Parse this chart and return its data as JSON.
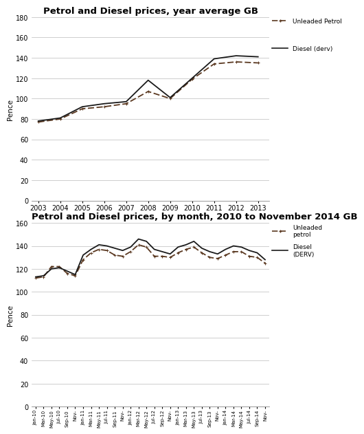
{
  "chart1_title": "Petrol and Diesel prices, year average GB",
  "chart1_ylabel": "Pence",
  "chart1_years": [
    2003,
    2004,
    2005,
    2006,
    2007,
    2008,
    2009,
    2010,
    2011,
    2012,
    2013
  ],
  "chart1_diesel": [
    78,
    81,
    92,
    95,
    97,
    118,
    101,
    120,
    139,
    142,
    141
  ],
  "chart1_petrol": [
    77,
    80,
    90,
    92,
    95,
    107,
    100,
    119,
    134,
    136,
    135
  ],
  "chart1_ylim": [
    0,
    180
  ],
  "chart1_yticks": [
    0,
    20,
    40,
    60,
    80,
    100,
    120,
    140,
    160,
    180
  ],
  "chart2_title": "Petrol and Diesel prices, by month, 2010 to November 2014 GB",
  "chart2_ylabel": "Pence",
  "chart2_ylim": [
    0,
    160
  ],
  "chart2_yticks": [
    0,
    20,
    40,
    60,
    80,
    100,
    120,
    140,
    160
  ],
  "chart2_xtick_labels": [
    "Jan-10",
    "Mar-10",
    "May-10",
    "Jul-10",
    "Sep-10",
    "Nov-",
    "Jan-11",
    "Mar-11",
    "May-11",
    "Jul-11",
    "Sep-11",
    "Nov-",
    "Jan-12",
    "Mar-12",
    "May-12",
    "Jul-12",
    "Sep-12",
    "Nov-",
    "Jan-13",
    "Mar-13",
    "May-13",
    "Jul-13",
    "Sep-13",
    "Nov-",
    "Jan-14",
    "Mar-14",
    "May-14",
    "Jul-14",
    "Sep-14",
    "Nov-"
  ],
  "chart2_diesel": [
    113,
    114,
    120,
    121,
    118,
    115,
    132,
    137,
    141,
    140,
    138,
    136,
    139,
    146,
    144,
    137,
    135,
    133,
    139,
    141,
    144,
    138,
    135,
    133,
    137,
    140,
    139,
    136,
    134,
    128
  ],
  "chart2_petrol": [
    112,
    113,
    122,
    122,
    116,
    114,
    128,
    134,
    137,
    136,
    132,
    131,
    135,
    141,
    139,
    131,
    131,
    130,
    134,
    137,
    139,
    134,
    130,
    129,
    132,
    135,
    135,
    131,
    130,
    125
  ],
  "diesel_color": "#1a1a1a",
  "petrol_color": "#5a3820",
  "line_width": 1.3,
  "grid_color": "#bbbbbb",
  "bg_color": "#ffffff",
  "title_fontsize": 9.5,
  "label_fontsize": 7.5,
  "tick_fontsize": 7,
  "legend_fontsize": 6.5
}
